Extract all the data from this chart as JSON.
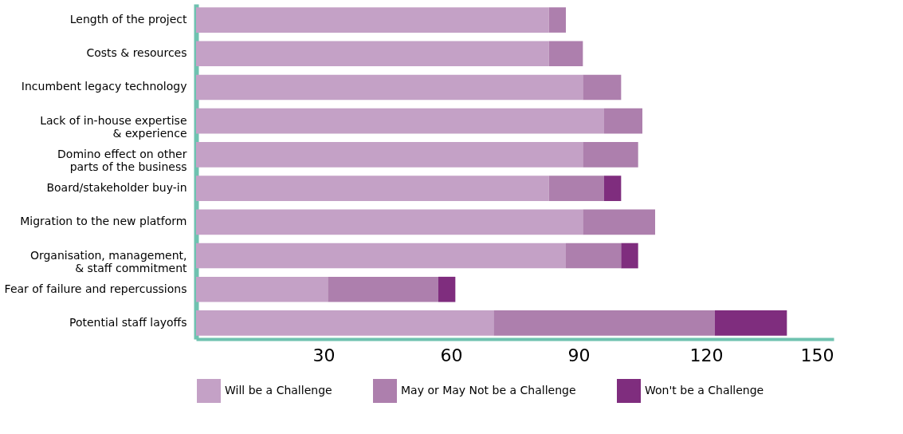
{
  "chart_data": {
    "type": "bar",
    "orientation": "horizontal",
    "stacked": true,
    "categories": [
      "Length of the project",
      "Costs & resources",
      "Incumbent legacy technology",
      "Lack of in-house expertise\n& experience",
      "Domino effect on other\nparts of the business",
      "Board/stakeholder buy-in",
      "Migration to the new platform",
      "Organisation, management,\n& staff commitment",
      "Fear of failure and repercussions",
      "Potential staff layoffs"
    ],
    "series": [
      {
        "name": "Will be a Challenge",
        "color": "#c4a1c6",
        "values": [
          83,
          83,
          91,
          96,
          91,
          83,
          91,
          87,
          31,
          70
        ]
      },
      {
        "name": "May or May Not be a Challenge",
        "color": "#ad7fad",
        "values": [
          4,
          8,
          9,
          9,
          13,
          13,
          17,
          13,
          26,
          52
        ]
      },
      {
        "name": "Won't be a Challenge",
        "color": "#7f2d7e",
        "values": [
          null,
          null,
          null,
          null,
          null,
          4,
          null,
          4,
          4,
          17
        ]
      }
    ],
    "xlim": [
      0,
      150
    ],
    "xticks": [
      30,
      60,
      90,
      120,
      150
    ],
    "grid": false,
    "legend": "bottom"
  }
}
